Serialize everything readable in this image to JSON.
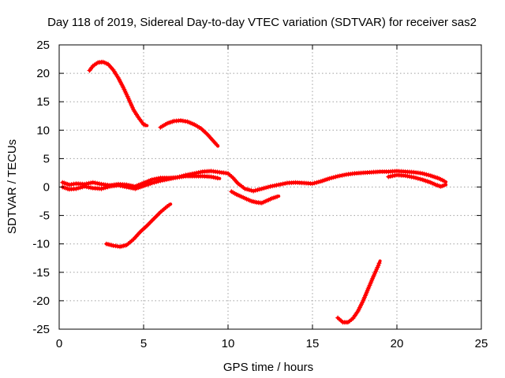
{
  "chart_data": {
    "type": "scatter",
    "title": "Day 118 of 2019, Sidereal Day-to-day VTEC variation (SDTVAR) for receiver sas2",
    "xlabel": "GPS time / hours",
    "ylabel": "SDTVAR / TECUs",
    "xlim": [
      0,
      25
    ],
    "ylim": [
      -25,
      25
    ],
    "xticks": [
      0,
      5,
      10,
      15,
      20,
      25
    ],
    "yticks": [
      -25,
      -20,
      -15,
      -10,
      -5,
      0,
      5,
      10,
      15,
      20,
      25
    ],
    "grid": true,
    "legend": "none",
    "color": "#ff0000",
    "series": [
      {
        "name": "arc-1",
        "x": [
          1.8,
          2.0,
          2.3,
          2.6,
          2.9,
          3.2,
          3.5,
          3.8,
          4.1,
          4.4,
          4.7,
          5.0,
          5.2
        ],
        "y": [
          20.5,
          21.3,
          21.9,
          22.0,
          21.6,
          20.6,
          19.2,
          17.5,
          15.6,
          13.6,
          12.2,
          11.0,
          10.8
        ]
      },
      {
        "name": "arc-2",
        "x": [
          6.0,
          6.4,
          6.8,
          7.2,
          7.6,
          8.0,
          8.4,
          8.8,
          9.1,
          9.4
        ],
        "y": [
          10.5,
          11.2,
          11.6,
          11.7,
          11.5,
          11.0,
          10.3,
          9.2,
          8.2,
          7.2
        ]
      },
      {
        "name": "arc-3",
        "x": [
          2.8,
          3.2,
          3.6,
          4.0,
          4.4,
          4.8,
          5.2,
          5.6,
          6.0,
          6.4,
          6.6
        ],
        "y": [
          -10.0,
          -10.3,
          -10.5,
          -10.2,
          -9.2,
          -7.9,
          -6.8,
          -5.6,
          -4.4,
          -3.4,
          -3.0
        ]
      },
      {
        "name": "arc-4",
        "x": [
          16.5,
          16.8,
          17.1,
          17.4,
          17.7,
          18.0,
          18.3,
          18.6,
          18.9,
          19.0
        ],
        "y": [
          -23.0,
          -23.8,
          -23.8,
          -23.1,
          -21.8,
          -20.0,
          -17.9,
          -15.8,
          -13.8,
          -13.0
        ]
      },
      {
        "name": "band-low",
        "x": [
          0.2,
          0.6,
          1.0,
          1.5,
          2.0,
          2.5,
          3.0,
          3.5,
          4.0,
          4.5,
          5.0,
          5.5,
          6.0,
          6.5,
          7.0,
          7.5,
          8.0,
          8.5,
          9.0,
          9.5
        ],
        "y": [
          0.0,
          -0.4,
          -0.3,
          0.1,
          -0.2,
          -0.3,
          0.1,
          0.3,
          0.0,
          -0.3,
          0.2,
          0.7,
          1.1,
          1.4,
          1.7,
          1.9,
          1.9,
          1.9,
          1.8,
          1.5
        ]
      },
      {
        "name": "band-high",
        "x": [
          0.2,
          0.6,
          1.0,
          1.5,
          2.0,
          2.5,
          3.0,
          3.5,
          4.0,
          4.5,
          5.0,
          5.5,
          6.0,
          6.5,
          7.0,
          7.5,
          8.0,
          8.5,
          9.0,
          9.5,
          10.0,
          10.3,
          10.6,
          11.0,
          11.5,
          12.0,
          12.5,
          13.0,
          13.5,
          14.0,
          14.5,
          15.0,
          15.5,
          16.0,
          16.5,
          17.0,
          17.5,
          18.0,
          18.5,
          19.0,
          19.5,
          20.0,
          20.5,
          21.0,
          21.5,
          22.0,
          22.5,
          22.9
        ],
        "y": [
          0.8,
          0.4,
          0.6,
          0.5,
          0.8,
          0.5,
          0.3,
          0.5,
          0.4,
          0.1,
          0.7,
          1.3,
          1.6,
          1.6,
          1.7,
          2.1,
          2.4,
          2.7,
          2.8,
          2.6,
          2.4,
          1.6,
          0.6,
          -0.3,
          -0.7,
          -0.3,
          0.1,
          0.4,
          0.7,
          0.8,
          0.7,
          0.6,
          1.0,
          1.5,
          1.9,
          2.2,
          2.4,
          2.5,
          2.6,
          2.7,
          2.7,
          2.8,
          2.7,
          2.6,
          2.4,
          2.0,
          1.5,
          0.9
        ]
      },
      {
        "name": "dip-segment",
        "x": [
          10.2,
          10.5,
          10.8,
          11.1,
          11.4,
          11.7,
          12.0,
          12.3,
          12.6,
          13.0
        ],
        "y": [
          -0.8,
          -1.3,
          -1.7,
          -2.1,
          -2.5,
          -2.7,
          -2.8,
          -2.4,
          -2.0,
          -1.6
        ]
      },
      {
        "name": "late-band",
        "x": [
          19.5,
          20.0,
          20.5,
          21.0,
          21.5,
          22.0,
          22.3,
          22.6,
          22.9
        ],
        "y": [
          1.8,
          2.1,
          2.0,
          1.7,
          1.3,
          0.8,
          0.4,
          0.1,
          0.4
        ]
      }
    ]
  }
}
